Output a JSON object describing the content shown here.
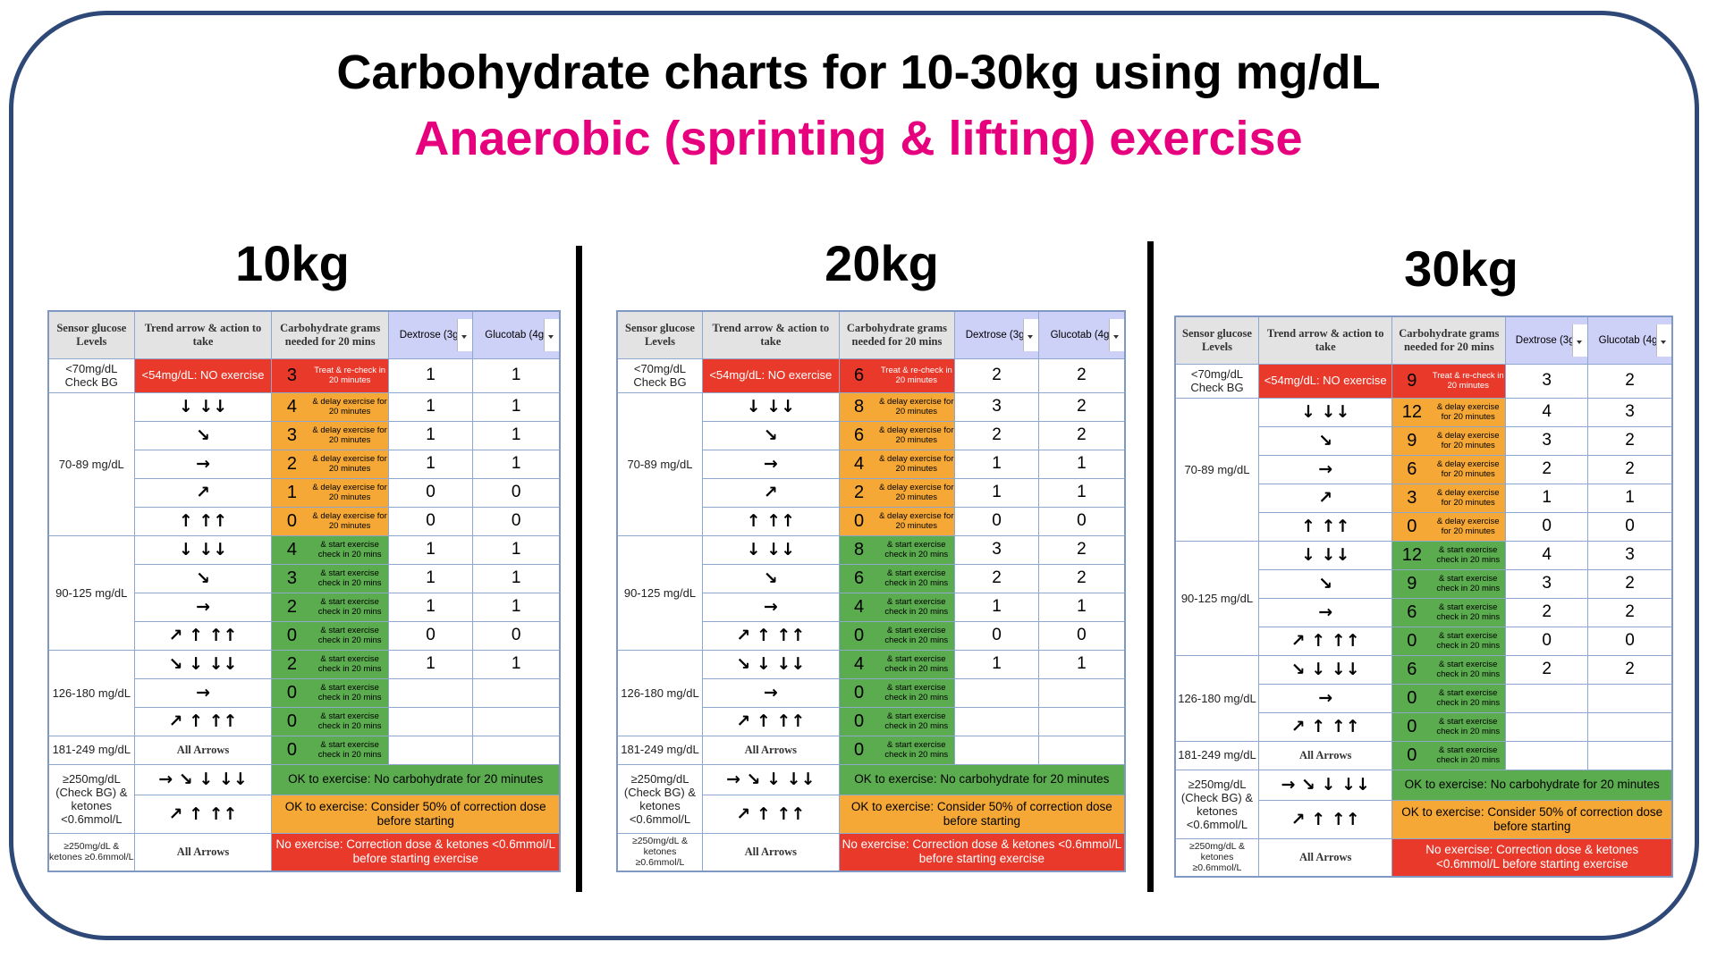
{
  "title": "Carbohydrate charts for 10-30kg using mg/dL",
  "subtitle": "Anaerobic (sprinting & lifting) exercise",
  "tables": [
    {
      "title": "10kg",
      "columns": [
        "Sensor glucose Levels",
        "Trend arrow & action to take",
        "Carbohydrate grams needed for 20 mins",
        "Dextrose (3g)",
        "Glucotab (4g)"
      ],
      "groups": [
        {
          "level": "<70mg/dL Check BG",
          "rows": [
            {
              "arrows": "<54mg/dL: NO exercise",
              "grams": 3,
              "note": "Treat & re-check in 20 minutes",
              "dextrose": 1,
              "glucotab": 1
            }
          ]
        },
        {
          "level": "70-89 mg/dL",
          "rows": [
            {
              "arrows": "↓ ↓↓",
              "grams": 4,
              "note": "& delay exercise for 20 minutes",
              "dextrose": 1,
              "glucotab": 1
            },
            {
              "arrows": "↘",
              "grams": 3,
              "note": "& delay exercise for 20 minutes",
              "dextrose": 1,
              "glucotab": 1
            },
            {
              "arrows": "→",
              "grams": 2,
              "note": "& delay exercise for 20 minutes",
              "dextrose": 1,
              "glucotab": 1
            },
            {
              "arrows": "↗",
              "grams": 1,
              "note": "& delay exercise for 20 minutes",
              "dextrose": 0,
              "glucotab": 0
            },
            {
              "arrows": "↑ ↑↑",
              "grams": 0,
              "note": "& delay exercise for 20 minutes",
              "dextrose": 0,
              "glucotab": 0
            }
          ]
        },
        {
          "level": "90-125 mg/dL",
          "rows": [
            {
              "arrows": "↓ ↓↓",
              "grams": 4,
              "note": "& start exercise check in 20 mins",
              "dextrose": 1,
              "glucotab": 1
            },
            {
              "arrows": "↘",
              "grams": 3,
              "note": "& start exercise check in 20 mins",
              "dextrose": 1,
              "glucotab": 1
            },
            {
              "arrows": "→",
              "grams": 2,
              "note": "& start exercise check in 20 mins",
              "dextrose": 1,
              "glucotab": 1
            },
            {
              "arrows": "↗ ↑ ↑↑",
              "grams": 0,
              "note": "& start exercise check in 20 mins",
              "dextrose": 0,
              "glucotab": 0
            }
          ]
        },
        {
          "level": "126-180 mg/dL",
          "rows": [
            {
              "arrows": "↘ ↓ ↓↓",
              "grams": 2,
              "note": "& start exercise check in 20 mins",
              "dextrose": 1,
              "glucotab": 1
            },
            {
              "arrows": "→",
              "grams": 0,
              "note": "& start exercise check in 20 mins"
            },
            {
              "arrows": "↗ ↑ ↑↑",
              "grams": 0,
              "note": "& start exercise check in 20 mins"
            }
          ]
        },
        {
          "level": "181-249 mg/dL",
          "rows": [
            {
              "arrows": "All Arrows",
              "grams": 0,
              "note": "& start exercise check in 20 mins"
            }
          ]
        },
        {
          "level": "≥250mg/dL (Check BG) & ketones <0.6mmol/L",
          "rows": [
            {
              "arrows": "→ ↘ ↓ ↓↓",
              "message": "OK to exercise: No carbohydrate for 20 minutes"
            },
            {
              "arrows": "↗ ↑ ↑↑",
              "message": "OK to exercise: Consider 50% of correction dose before starting"
            }
          ]
        },
        {
          "level": "≥250mg/dL & ketones ≥0.6mmol/L",
          "rows": [
            {
              "arrows": "All Arrows",
              "message": "No exercise: Correction dose & ketones <0.6mmol/L before starting exercise"
            }
          ]
        }
      ]
    },
    {
      "title": "20kg",
      "columns": [
        "Sensor glucose Levels",
        "Trend arrow & action to take",
        "Carbohydrate grams needed for 20 mins",
        "Dextrose (3g)",
        "Glucotab (4g)"
      ],
      "groups": [
        {
          "level": "<70mg/dL Check BG",
          "rows": [
            {
              "arrows": "<54mg/dL: NO exercise",
              "grams": 6,
              "note": "Treat & re-check in 20 minutes",
              "dextrose": 2,
              "glucotab": 2
            }
          ]
        },
        {
          "level": "70-89 mg/dL",
          "rows": [
            {
              "arrows": "↓ ↓↓",
              "grams": 8,
              "note": "& delay exercise for 20 minutes",
              "dextrose": 3,
              "glucotab": 2
            },
            {
              "arrows": "↘",
              "grams": 6,
              "note": "& delay exercise for 20 minutes",
              "dextrose": 2,
              "glucotab": 2
            },
            {
              "arrows": "→",
              "grams": 4,
              "note": "& delay exercise for 20 minutes",
              "dextrose": 1,
              "glucotab": 1
            },
            {
              "arrows": "↗",
              "grams": 2,
              "note": "& delay exercise for 20 minutes",
              "dextrose": 1,
              "glucotab": 1
            },
            {
              "arrows": "↑ ↑↑",
              "grams": 0,
              "note": "& delay exercise for 20 minutes",
              "dextrose": 0,
              "glucotab": 0
            }
          ]
        },
        {
          "level": "90-125 mg/dL",
          "rows": [
            {
              "arrows": "↓ ↓↓",
              "grams": 8,
              "note": "& start exercise check in 20 mins",
              "dextrose": 3,
              "glucotab": 2
            },
            {
              "arrows": "↘",
              "grams": 6,
              "note": "& start exercise check in 20 mins",
              "dextrose": 2,
              "glucotab": 2
            },
            {
              "arrows": "→",
              "grams": 4,
              "note": "& start exercise check in 20 mins",
              "dextrose": 1,
              "glucotab": 1
            },
            {
              "arrows": "↗ ↑ ↑↑",
              "grams": 0,
              "note": "& start exercise check in 20 mins",
              "dextrose": 0,
              "glucotab": 0
            }
          ]
        },
        {
          "level": "126-180 mg/dL",
          "rows": [
            {
              "arrows": "↘ ↓ ↓↓",
              "grams": 4,
              "note": "& start exercise check in 20 mins",
              "dextrose": 1,
              "glucotab": 1
            },
            {
              "arrows": "→",
              "grams": 0,
              "note": "& start exercise check in 20 mins"
            },
            {
              "arrows": "↗ ↑ ↑↑",
              "grams": 0,
              "note": "& start exercise check in 20 mins"
            }
          ]
        },
        {
          "level": "181-249 mg/dL",
          "rows": [
            {
              "arrows": "All Arrows",
              "grams": 0,
              "note": "& start exercise check in 20 mins"
            }
          ]
        },
        {
          "level": "≥250mg/dL (Check BG) & ketones <0.6mmol/L",
          "rows": [
            {
              "arrows": "→ ↘ ↓ ↓↓",
              "message": "OK to exercise: No carbohydrate for 20 minutes"
            },
            {
              "arrows": "↗ ↑ ↑↑",
              "message": "OK to exercise: Consider 50% of correction dose before starting"
            }
          ]
        },
        {
          "level": "≥250mg/dL & ketones ≥0.6mmol/L",
          "rows": [
            {
              "arrows": "All Arrows",
              "message": "No exercise: Correction dose & ketones <0.6mmol/L before starting exercise"
            }
          ]
        }
      ]
    },
    {
      "title": "30kg",
      "columns": [
        "Sensor glucose Levels",
        "Trend arrow & action to take",
        "Carbohydrate grams needed for 20 mins",
        "Dextrose (3g)",
        "Glucotab (4g)"
      ],
      "groups": [
        {
          "level": "<70mg/dL Check BG",
          "rows": [
            {
              "arrows": "<54mg/dL: NO exercise",
              "grams": 9,
              "note": "Treat & re-check in 20 minutes",
              "dextrose": 3,
              "glucotab": 2
            }
          ]
        },
        {
          "level": "70-89 mg/dL",
          "rows": [
            {
              "arrows": "↓ ↓↓",
              "grams": 12,
              "note": "& delay exercise for 20 minutes",
              "dextrose": 4,
              "glucotab": 3
            },
            {
              "arrows": "↘",
              "grams": 9,
              "note": "& delay exercise for 20 minutes",
              "dextrose": 3,
              "glucotab": 2
            },
            {
              "arrows": "→",
              "grams": 6,
              "note": "& delay exercise for 20 minutes",
              "dextrose": 2,
              "glucotab": 2
            },
            {
              "arrows": "↗",
              "grams": 3,
              "note": "& delay exercise for 20 minutes",
              "dextrose": 1,
              "glucotab": 1
            },
            {
              "arrows": "↑ ↑↑",
              "grams": 0,
              "note": "& delay exercise for 20 minutes",
              "dextrose": 0,
              "glucotab": 0
            }
          ]
        },
        {
          "level": "90-125 mg/dL",
          "rows": [
            {
              "arrows": "↓ ↓↓",
              "grams": 12,
              "note": "& start exercise check in 20 mins",
              "dextrose": 4,
              "glucotab": 3
            },
            {
              "arrows": "↘",
              "grams": 9,
              "note": "& start exercise check in 20 mins",
              "dextrose": 3,
              "glucotab": 2
            },
            {
              "arrows": "→",
              "grams": 6,
              "note": "& start exercise check in 20 mins",
              "dextrose": 2,
              "glucotab": 2
            },
            {
              "arrows": "↗ ↑ ↑↑",
              "grams": 0,
              "note": "& start exercise check in 20 mins",
              "dextrose": 0,
              "glucotab": 0
            }
          ]
        },
        {
          "level": "126-180 mg/dL",
          "rows": [
            {
              "arrows": "↘ ↓ ↓↓",
              "grams": 6,
              "note": "& start exercise check in 20 mins",
              "dextrose": 2,
              "glucotab": 2
            },
            {
              "arrows": "→",
              "grams": 0,
              "note": "& start exercise check in 20 mins"
            },
            {
              "arrows": "↗ ↑ ↑↑",
              "grams": 0,
              "note": "& start exercise check in 20 mins"
            }
          ]
        },
        {
          "level": "181-249 mg/dL",
          "rows": [
            {
              "arrows": "All Arrows",
              "grams": 0,
              "note": "& start exercise check in 20 mins"
            }
          ]
        },
        {
          "level": "≥250mg/dL (Check BG) & ketones <0.6mmol/L",
          "rows": [
            {
              "arrows": "→ ↘ ↓ ↓↓",
              "message": "OK to exercise: No carbohydrate for 20 minutes"
            },
            {
              "arrows": "↗ ↑ ↑↑",
              "message": "OK to exercise: Consider 50% of correction dose before starting"
            }
          ]
        },
        {
          "level": "≥250mg/dL & ketones ≥0.6mmol/L",
          "rows": [
            {
              "arrows": "All Arrows",
              "message": "No exercise: Correction dose & ketones <0.6mmol/L before starting exercise"
            }
          ]
        }
      ]
    }
  ]
}
